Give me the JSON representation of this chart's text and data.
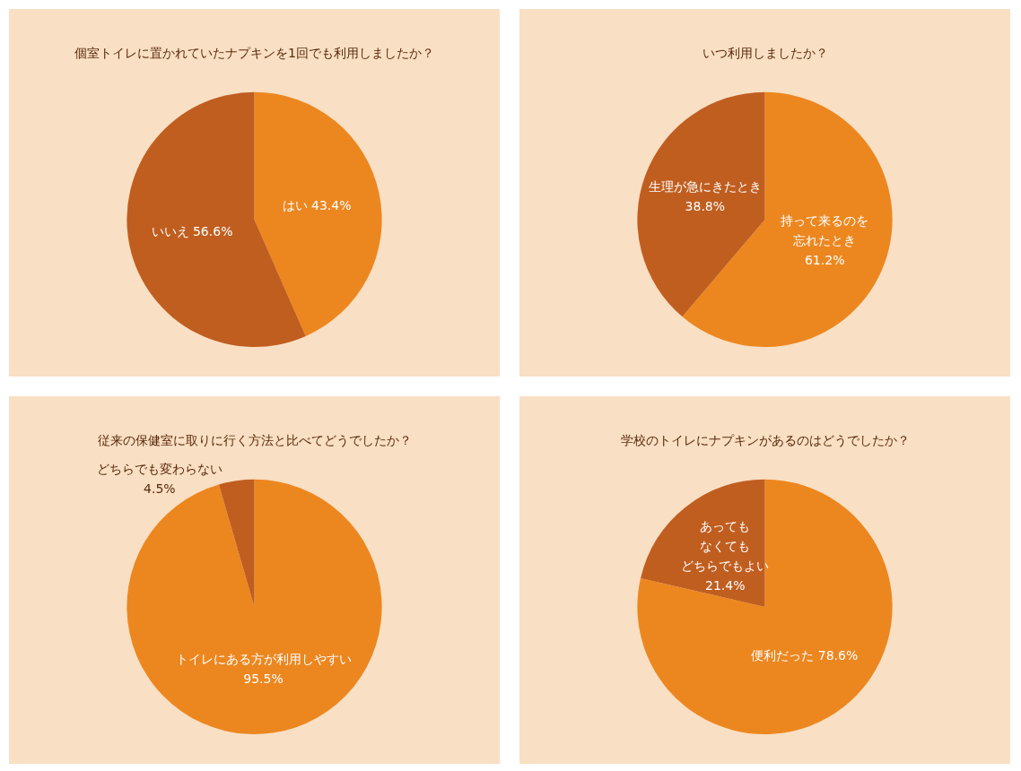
{
  "chart_data": [
    {
      "type": "pie",
      "title": "個室トイレに置かれていたナプキンを1回でも利用しましたか？",
      "categories": [
        "はい",
        "いいえ"
      ],
      "values": [
        43.4,
        56.6
      ],
      "value_labels": [
        "43.4%",
        "56.6%"
      ],
      "colors": [
        "#ec8720",
        "#c05e20"
      ]
    },
    {
      "type": "pie",
      "title": "いつ利用しましたか？",
      "categories": [
        "持って来るのを忘れたとき",
        "生理が急にきたとき"
      ],
      "values": [
        61.2,
        38.8
      ],
      "value_labels": [
        "61.2%",
        "38.8%"
      ],
      "colors": [
        "#ec8720",
        "#c05e20"
      ]
    },
    {
      "type": "pie",
      "title": "従来の保健室に取りに行く方法と比べてどうでしたか？",
      "categories": [
        "トイレにある方が利用しやすい",
        "どちらでも変わらない"
      ],
      "values": [
        95.5,
        4.5
      ],
      "value_labels": [
        "95.5%",
        "4.5%"
      ],
      "colors": [
        "#ec8720",
        "#c05e20"
      ]
    },
    {
      "type": "pie",
      "title": "学校のトイレにナプキンがあるのはどうでしたか？",
      "categories": [
        "便利だった",
        "あってもなくてもどちらでもよい"
      ],
      "values": [
        78.6,
        21.4
      ],
      "value_labels": [
        "78.6%",
        "21.4%"
      ],
      "colors": [
        "#ec8720",
        "#c05e20"
      ]
    }
  ]
}
